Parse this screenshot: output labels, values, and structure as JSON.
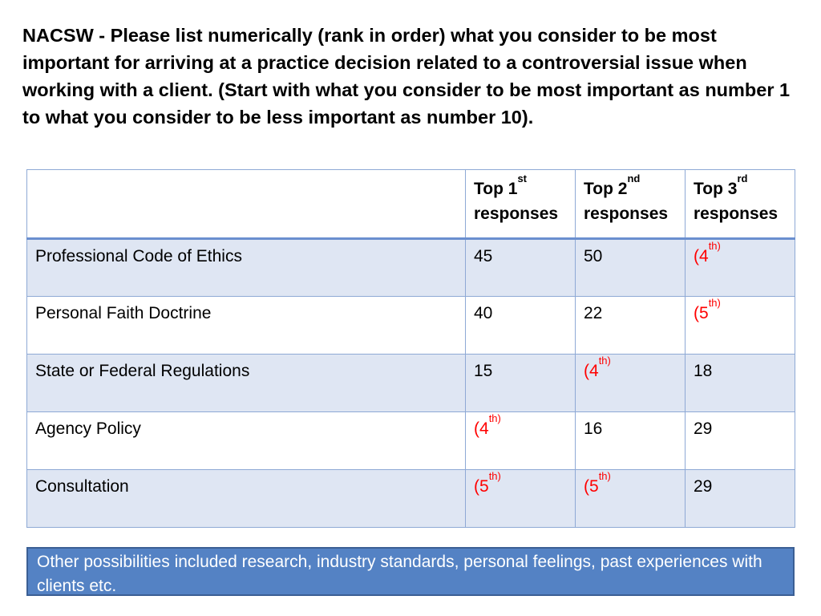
{
  "heading": "NACSW -  Please list numerically (rank in order) what you consider to be most important for arriving at a practice decision related to a controversial issue when working with a client.  (Start with what you consider to be most important as number 1 to what you consider to be less important as number 10).",
  "table": {
    "header": {
      "empty": "",
      "col1": {
        "main": "Top 1",
        "sup": "st",
        "sub": "responses"
      },
      "col2": {
        "main": "Top 2",
        "sup": "nd",
        "sub": "responses"
      },
      "col3": {
        "main": "Top 3",
        "sup": "rd",
        "sub": "responses"
      }
    },
    "rows": [
      {
        "label": "Professional Code of Ethics",
        "c1": {
          "main": "45",
          "sup": ""
        },
        "c2": {
          "main": "50",
          "sup": ""
        },
        "c3": {
          "main": "(4",
          "sup": "th)"
        }
      },
      {
        "label": "Personal Faith Doctrine",
        "c1": {
          "main": "40",
          "sup": ""
        },
        "c2": {
          "main": "22",
          "sup": ""
        },
        "c3": {
          "main": "(5",
          "sup": "th)"
        }
      },
      {
        "label": "State or Federal Regulations",
        "c1": {
          "main": "15",
          "sup": ""
        },
        "c2": {
          "main": "(4",
          "sup": "th)"
        },
        "c3": {
          "main": "18",
          "sup": ""
        }
      },
      {
        "label": "Agency Policy",
        "c1": {
          "main": "(4",
          "sup": "th)"
        },
        "c2": {
          "main": "16",
          "sup": ""
        },
        "c3": {
          "main": "29",
          "sup": ""
        }
      },
      {
        "label": "Consultation",
        "c1": {
          "main": "(5",
          "sup": "th)"
        },
        "c2": {
          "main": "(5",
          "sup": "th)"
        },
        "c3": {
          "main": "29",
          "sup": ""
        }
      }
    ]
  },
  "note": "Other possibilities included research, industry standards, personal feelings, past experiences with clients etc.",
  "colors": {
    "highlight_red": "#ff0000",
    "row_band": "#dfe6f3",
    "border": "#8ea9d5",
    "note_background": "#5482c4",
    "note_text": "#ffffff"
  }
}
